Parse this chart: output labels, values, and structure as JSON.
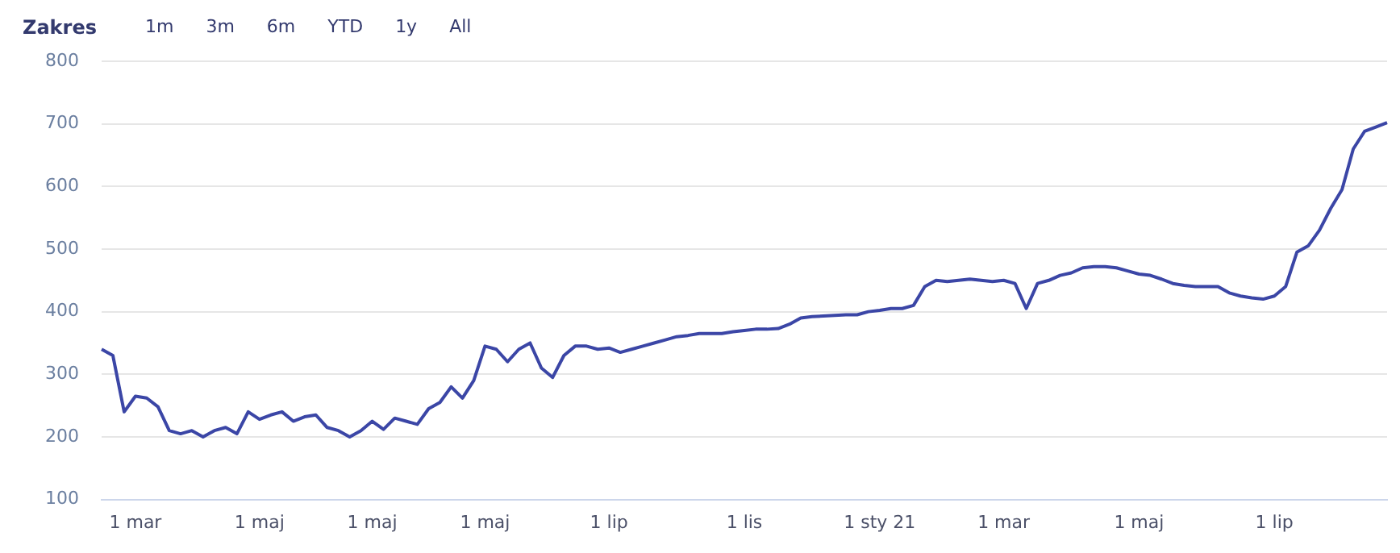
{
  "chart_data": {
    "type": "line",
    "annotations": [
      "Zakres",
      "1m",
      "3m",
      "6m",
      "YTD",
      "1y",
      "All"
    ],
    "categories": [
      null,
      null,
      null,
      "1 mar",
      null,
      null,
      null,
      null,
      null,
      null,
      null,
      null,
      null,
      null,
      "1 maj",
      null,
      null,
      null,
      null,
      null,
      null,
      null,
      null,
      null,
      "1 maj",
      null,
      null,
      null,
      null,
      null,
      null,
      null,
      null,
      null,
      "1 maj",
      null,
      null,
      null,
      null,
      null,
      null,
      null,
      null,
      null,
      null,
      "1 lip",
      null,
      null,
      null,
      null,
      null,
      null,
      null,
      null,
      null,
      null,
      null,
      "1 lis",
      null,
      null,
      null,
      null,
      null,
      null,
      null,
      null,
      null,
      null,
      null,
      "1 sty 21",
      null,
      null,
      null,
      null,
      null,
      null,
      null,
      null,
      null,
      null,
      "1 mar",
      null,
      null,
      null,
      null,
      null,
      null,
      null,
      null,
      null,
      null,
      null,
      "1 maj",
      null,
      null,
      null,
      null,
      null,
      null,
      null,
      null,
      null,
      null,
      null,
      "1 lip",
      null,
      null,
      null,
      null,
      null,
      null,
      null,
      null,
      null,
      null
    ],
    "series": [
      {
        "color": "#3b46a6",
        "values": [
          340,
          330,
          240,
          265,
          262,
          248,
          210,
          205,
          210,
          200,
          210,
          215,
          205,
          240,
          228,
          235,
          240,
          225,
          232,
          235,
          215,
          210,
          200,
          210,
          225,
          212,
          230,
          225,
          220,
          245,
          255,
          280,
          262,
          290,
          345,
          340,
          320,
          340,
          350,
          310,
          295,
          330,
          345,
          345,
          340,
          342,
          335,
          340,
          345,
          350,
          355,
          360,
          362,
          365,
          365,
          365,
          368,
          370,
          372,
          372,
          373,
          380,
          390,
          392,
          393,
          394,
          395,
          395,
          400,
          402,
          405,
          405,
          410,
          440,
          450,
          448,
          450,
          452,
          450,
          448,
          450,
          445,
          405,
          445,
          450,
          458,
          462,
          470,
          472,
          472,
          470,
          465,
          460,
          458,
          452,
          445,
          442,
          440,
          440,
          440,
          430,
          425,
          422,
          420,
          425,
          440,
          495,
          505,
          530,
          565,
          595,
          660,
          688,
          695,
          702
        ]
      }
    ],
    "ylim": [
      100,
      800
    ],
    "yticks": [
      100,
      200,
      300,
      400,
      500,
      600,
      700,
      800
    ],
    "grid": "y",
    "legend": false,
    "marker": "none",
    "line_style": "solid"
  }
}
